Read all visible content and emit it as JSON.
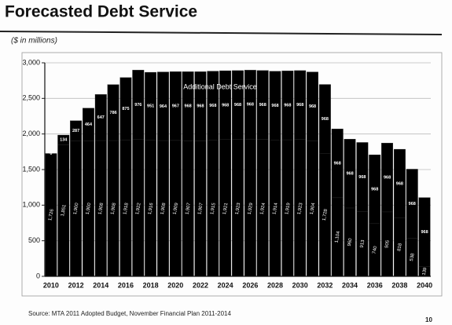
{
  "title": "Forecasted Debt Service",
  "source": "Source: MTA 2011 Adopted Budget, November Financial Plan 2011-2014",
  "page_number": "10",
  "chart_data": {
    "type": "stacked-bar",
    "subtitle": "($ in millions)",
    "categories": [
      "2010",
      null,
      "2012",
      null,
      "2014",
      null,
      "2016",
      null,
      "2018",
      null,
      "2020",
      null,
      "2022",
      null,
      "2024",
      null,
      "2026",
      null,
      "2028",
      null,
      "2030",
      null,
      "2032",
      null,
      "2034",
      null,
      "2036",
      null,
      "2038",
      null,
      "2040"
    ],
    "series": [
      {
        "color": "#000000",
        "values": [
          1726,
          1851,
          1900,
          1900,
          1908,
          1908,
          1918,
          1922,
          1916,
          1908,
          1909,
          1907,
          1907,
          1915,
          1921,
          1923,
          1929,
          1924,
          1914,
          1919,
          1923,
          1904,
          1728,
          1104,
          960,
          913,
          740,
          905,
          818,
          538,
          139
        ],
        "value_labels": [
          "1,726",
          "1,851",
          "1,900",
          "1,900",
          "1,908",
          "1,908",
          "1,918",
          "1,922",
          "1,916",
          "1,908",
          "1,909",
          "1,907",
          "1,907",
          "1,915",
          "1,921",
          "1,923",
          "1,929",
          "1,924",
          "1,914",
          "1,919",
          "1,923",
          "1,904",
          "1,728",
          "1,104",
          "960",
          "913",
          "740",
          "905",
          "818",
          "538",
          "139"
        ]
      },
      {
        "name": "Additional Debt Service",
        "color": "#000000",
        "values": [
          0,
          134,
          287,
          464,
          647,
          786,
          875,
          976,
          951,
          964,
          967,
          968,
          968,
          968,
          968,
          968,
          968,
          968,
          968,
          968,
          968,
          968,
          968,
          968,
          968,
          968,
          968,
          968,
          968,
          968,
          968
        ]
      }
    ],
    "ylim": [
      0,
      3000
    ],
    "yticks": [
      0,
      500,
      {
        "value": 1000,
        "label": "1,000"
      },
      {
        "value": 1500,
        "label": "1,500"
      },
      {
        "value": 2000,
        "label": "2,000"
      },
      {
        "value": 2500,
        "label": "2,500"
      },
      {
        "value": 3000,
        "label": "3,000"
      }
    ],
    "grid": true
  }
}
